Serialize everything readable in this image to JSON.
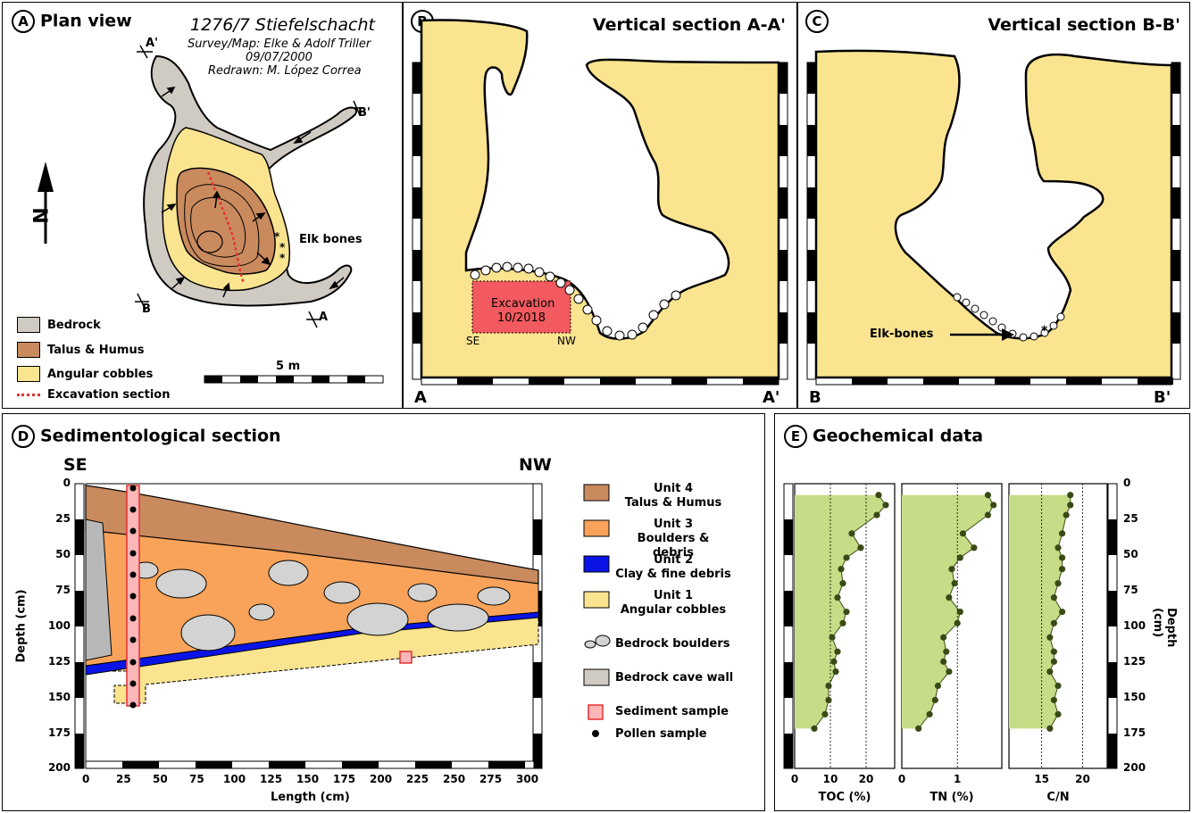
{
  "panelA": {
    "letter": "A",
    "title": "Plan view",
    "cave_name": "1276/7 Stiefelschacht",
    "survey": "Survey/Map: Elke & Adolf Triller",
    "date": "09/07/2000",
    "redrawn": "Redrawn: M. López Correa",
    "north": "N",
    "marker_a1": "A'",
    "marker_b1": "B'",
    "marker_b": "B",
    "marker_a": "A",
    "elk_label": "Elk bones",
    "scale_label": "5 m",
    "legend": [
      {
        "label": "Bedrock",
        "color": "#cfcac2"
      },
      {
        "label": "Talus & Humus",
        "color": "#c98a5e"
      },
      {
        "label": "Angular cobbles",
        "color": "#fbe48f"
      },
      {
        "label": "Excavation section",
        "color": "#e53030"
      }
    ]
  },
  "panelB": {
    "letter": "B",
    "title": "Vertical section A-A'",
    "excavation_line1": "Excavation",
    "excavation_line2": "10/2018",
    "se": "SE",
    "nw": "NW",
    "left_end": "A",
    "right_end": "A'"
  },
  "panelC": {
    "letter": "C",
    "title": "Vertical section B-B'",
    "elk_label": "Elk-bones",
    "left_end": "B",
    "right_end": "B'"
  },
  "panelD": {
    "letter": "D",
    "title": "Sedimentological section",
    "se": "SE",
    "nw": "NW",
    "ylabel": "Depth (cm)",
    "xlabel": "Length (cm)",
    "yticks": [
      "0",
      "25",
      "50",
      "75",
      "100",
      "125",
      "150",
      "175",
      "200"
    ],
    "xticks": [
      "0",
      "25",
      "50",
      "75",
      "100",
      "125",
      "150",
      "175",
      "200",
      "225",
      "250",
      "275",
      "300"
    ],
    "legend": [
      {
        "line1": "Unit 4",
        "line2": "Talus & Humus",
        "color": "#c98a5e"
      },
      {
        "line1": "Unit 3",
        "line2": "Boulders & debris",
        "color": "#f9a35a"
      },
      {
        "line1": "Unit 2",
        "line2": "Clay & fine debris",
        "color": "#0a14e6"
      },
      {
        "line1": "Unit 1",
        "line2": "Angular cobbles",
        "color": "#fbe48f"
      }
    ],
    "legend_boulders": "Bedrock boulders",
    "legend_wall": "Bedrock cave wall",
    "legend_sediment": "Sediment sample",
    "legend_pollen": "Pollen sample"
  },
  "panelE": {
    "letter": "E",
    "title": "Geochemical data",
    "ylabel": "Depth (cm)",
    "yticks": [
      "0",
      "25",
      "50",
      "75",
      "100",
      "125",
      "150",
      "175",
      "200"
    ],
    "fill_color": "#c6dc86",
    "point_color": "#3a4a17"
  },
  "chart_data": [
    {
      "type": "line",
      "xlabel": "TOC (%)",
      "xticks": [
        "0",
        "10",
        "20"
      ],
      "xlim": [
        0,
        28
      ],
      "ylim": [
        0,
        200
      ],
      "depth": [
        8,
        15,
        22,
        35,
        45,
        52,
        60,
        70,
        80,
        90,
        98,
        108,
        118,
        125,
        132,
        142,
        152,
        162,
        172
      ],
      "values": [
        23.5,
        25.5,
        23,
        16,
        18.5,
        14.5,
        13,
        13.5,
        12,
        14.5,
        13.5,
        10.5,
        12,
        11,
        11.5,
        9.5,
        9.5,
        8.5,
        5.5
      ]
    },
    {
      "type": "line",
      "xlabel": "TN (%)",
      "xticks": [
        "0",
        "1"
      ],
      "xlim": [
        0,
        1.8
      ],
      "ylim": [
        0,
        200
      ],
      "depth": [
        8,
        15,
        22,
        35,
        45,
        52,
        60,
        70,
        80,
        90,
        98,
        108,
        118,
        125,
        132,
        142,
        152,
        162,
        172
      ],
      "values": [
        1.55,
        1.65,
        1.55,
        1.1,
        1.3,
        1.05,
        0.9,
        0.95,
        0.85,
        1.05,
        1.0,
        0.75,
        0.8,
        0.75,
        0.85,
        0.65,
        0.6,
        0.5,
        0.3
      ]
    },
    {
      "type": "line",
      "xlabel": "C/N",
      "xticks": [
        "15",
        "20"
      ],
      "xlim": [
        11,
        23
      ],
      "ylim": [
        0,
        200
      ],
      "depth": [
        8,
        15,
        22,
        35,
        45,
        52,
        60,
        70,
        80,
        90,
        98,
        108,
        118,
        125,
        132,
        142,
        152,
        162,
        172
      ],
      "values": [
        18.5,
        18.5,
        18,
        17.5,
        17,
        17.5,
        17.5,
        17,
        16.5,
        17.5,
        16.5,
        16,
        16.5,
        16.5,
        16,
        17,
        16.5,
        17,
        16
      ]
    }
  ]
}
